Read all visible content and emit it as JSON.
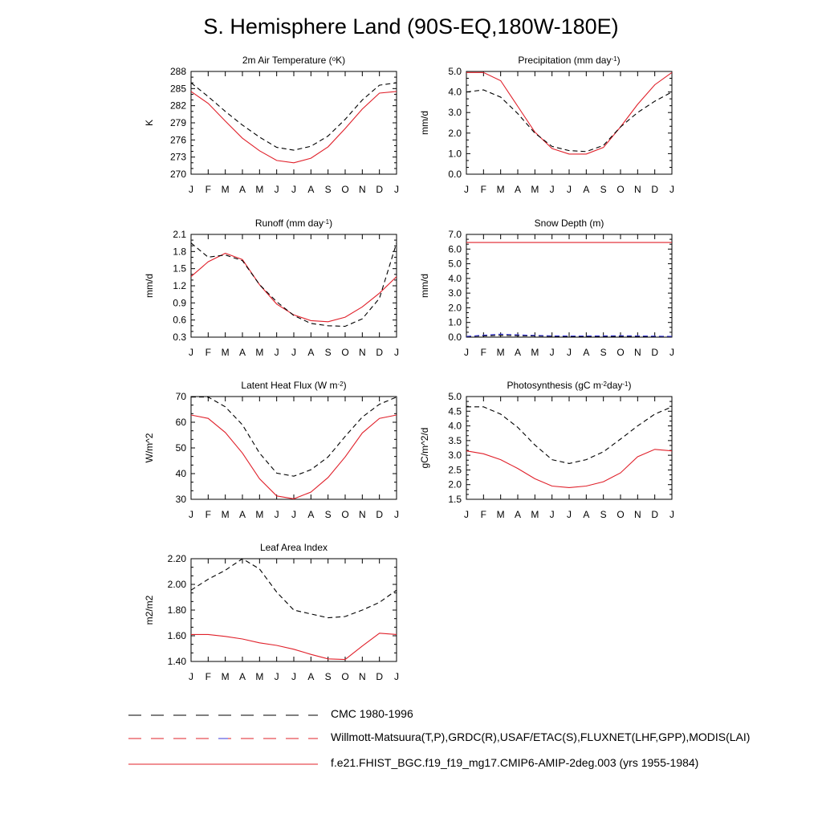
{
  "title": "S. Hemisphere Land (90S-EQ,180W-180E)",
  "colors": {
    "model": "#e0202a",
    "obs": "#000000",
    "obs_alt": "#3a3ad8"
  },
  "chart_data": [
    {
      "id": "tsa",
      "type": "line",
      "title": "2m Air Temperature (°K)",
      "title_parts": [
        {
          "t": "2m Air Temperature ("
        },
        {
          "t": "o",
          "sup": true
        },
        {
          "t": "K)"
        }
      ],
      "ylabel": "K",
      "ylim": [
        270,
        288
      ],
      "yticks": [
        "270",
        "273",
        "276",
        "279",
        "282",
        "285",
        "288"
      ],
      "categories": [
        "J",
        "F",
        "M",
        "A",
        "M",
        "J",
        "J",
        "A",
        "S",
        "O",
        "N",
        "D",
        "J"
      ],
      "series": [
        {
          "name": "model",
          "style": "solid",
          "values": [
            284.5,
            282.4,
            279.3,
            276.3,
            274.1,
            272.4,
            272.0,
            272.8,
            274.8,
            278.0,
            281.4,
            284.2,
            284.5
          ]
        },
        {
          "name": "obs",
          "style": "dashed",
          "values": [
            286.0,
            283.6,
            281.0,
            278.6,
            276.5,
            274.7,
            274.2,
            274.9,
            276.7,
            279.6,
            283.0,
            285.6,
            286.0
          ]
        }
      ]
    },
    {
      "id": "prect",
      "type": "line",
      "title": "Precipitation (mm day-1)",
      "title_parts": [
        {
          "t": "Precipitation (mm day"
        },
        {
          "t": "-1",
          "sup": true
        },
        {
          "t": ")"
        }
      ],
      "ylabel": "mm/d",
      "ylim": [
        0.0,
        5.0
      ],
      "yticks": [
        "0.0",
        "1.0",
        "2.0",
        "3.0",
        "4.0",
        "5.0"
      ],
      "categories": [
        "J",
        "F",
        "M",
        "A",
        "M",
        "J",
        "J",
        "A",
        "S",
        "O",
        "N",
        "D",
        "J"
      ],
      "series": [
        {
          "name": "model",
          "style": "solid",
          "values": [
            4.95,
            4.95,
            4.55,
            3.3,
            2.05,
            1.25,
            0.98,
            0.98,
            1.3,
            2.3,
            3.4,
            4.35,
            4.95
          ]
        },
        {
          "name": "obs",
          "style": "dashed",
          "values": [
            4.0,
            4.1,
            3.75,
            2.95,
            2.0,
            1.35,
            1.15,
            1.1,
            1.4,
            2.3,
            3.0,
            3.55,
            4.0
          ]
        }
      ]
    },
    {
      "id": "runoff",
      "type": "line",
      "title": "Runoff (mm day-1)",
      "title_parts": [
        {
          "t": "Runoff (mm day"
        },
        {
          "t": "-1",
          "sup": true
        },
        {
          "t": ")"
        }
      ],
      "ylabel": "mm/d",
      "ylim": [
        0.3,
        2.1
      ],
      "yticks": [
        "0.3",
        "0.6",
        "0.9",
        "1.2",
        "1.5",
        "1.8",
        "2.1"
      ],
      "categories": [
        "J",
        "F",
        "M",
        "A",
        "M",
        "J",
        "J",
        "A",
        "S",
        "O",
        "N",
        "D",
        "J"
      ],
      "series": [
        {
          "name": "model",
          "style": "solid",
          "values": [
            1.36,
            1.62,
            1.77,
            1.66,
            1.22,
            0.88,
            0.69,
            0.59,
            0.57,
            0.65,
            0.83,
            1.07,
            1.36
          ]
        },
        {
          "name": "obs",
          "style": "dashed",
          "values": [
            1.95,
            1.7,
            1.74,
            1.64,
            1.22,
            0.92,
            0.68,
            0.54,
            0.5,
            0.49,
            0.62,
            0.98,
            1.95
          ]
        }
      ]
    },
    {
      "id": "snowdp",
      "type": "line",
      "title": "Snow Depth (m)",
      "title_parts": [
        {
          "t": "Snow Depth (m)"
        }
      ],
      "ylabel": "mm/d",
      "ylim": [
        0.0,
        7.0
      ],
      "yticks": [
        "0.0",
        "1.0",
        "2.0",
        "3.0",
        "4.0",
        "5.0",
        "6.0",
        "7.0"
      ],
      "categories": [
        "J",
        "F",
        "M",
        "A",
        "M",
        "J",
        "J",
        "A",
        "S",
        "O",
        "N",
        "D",
        "J"
      ],
      "series": [
        {
          "name": "model",
          "style": "solid",
          "values": [
            6.45,
            6.45,
            6.45,
            6.45,
            6.45,
            6.45,
            6.45,
            6.45,
            6.45,
            6.45,
            6.45,
            6.45,
            6.45
          ]
        },
        {
          "name": "obs",
          "style": "dashed",
          "values": [
            0.05,
            0.09,
            0.12,
            0.1,
            0.08,
            0.06,
            0.05,
            0.05,
            0.06,
            0.06,
            0.06,
            0.05,
            0.05
          ]
        },
        {
          "name": "obs-alt",
          "style": "dashed-blue",
          "values": [
            0.05,
            0.13,
            0.2,
            0.16,
            0.12,
            0.09,
            0.08,
            0.08,
            0.09,
            0.1,
            0.09,
            0.07,
            0.05
          ]
        }
      ]
    },
    {
      "id": "lhf",
      "type": "line",
      "title": "Latent Heat Flux (W m-2)",
      "title_parts": [
        {
          "t": "Latent Heat Flux (W m"
        },
        {
          "t": "-2",
          "sup": true
        },
        {
          "t": ")"
        }
      ],
      "ylabel": "W/m^2",
      "ylim": [
        30,
        70
      ],
      "yticks": [
        "30",
        "40",
        "50",
        "60",
        "70"
      ],
      "categories": [
        "J",
        "F",
        "M",
        "A",
        "M",
        "J",
        "J",
        "A",
        "S",
        "O",
        "N",
        "D",
        "J"
      ],
      "series": [
        {
          "name": "model",
          "style": "solid",
          "values": [
            62.8,
            61.5,
            56.0,
            48.0,
            38.0,
            31.3,
            30.2,
            32.8,
            38.5,
            46.5,
            55.8,
            61.5,
            62.8
          ]
        },
        {
          "name": "obs",
          "style": "dashed",
          "values": [
            69.8,
            69.8,
            66.0,
            59.0,
            48.0,
            40.2,
            39.0,
            41.5,
            46.5,
            54.5,
            62.0,
            67.0,
            69.8
          ]
        }
      ]
    },
    {
      "id": "gpp",
      "type": "line",
      "title": "Photosynthesis (gC m-2day-1)",
      "title_parts": [
        {
          "t": "Photosynthesis (gC m"
        },
        {
          "t": "-2",
          "sup": true
        },
        {
          "t": "day"
        },
        {
          "t": "-1",
          "sup": true
        },
        {
          "t": ")"
        }
      ],
      "ylabel": "gC/m^2/d",
      "ylim": [
        1.5,
        5.0
      ],
      "yticks": [
        "1.5",
        "2.0",
        "2.5",
        "3.0",
        "3.5",
        "4.0",
        "4.5",
        "5.0"
      ],
      "categories": [
        "J",
        "F",
        "M",
        "A",
        "M",
        "J",
        "J",
        "A",
        "S",
        "O",
        "N",
        "D",
        "J"
      ],
      "series": [
        {
          "name": "model",
          "style": "solid",
          "values": [
            3.15,
            3.05,
            2.85,
            2.55,
            2.2,
            1.95,
            1.9,
            1.95,
            2.1,
            2.4,
            2.95,
            3.2,
            3.15
          ]
        },
        {
          "name": "obs",
          "style": "dashed",
          "values": [
            4.65,
            4.65,
            4.4,
            3.95,
            3.35,
            2.85,
            2.72,
            2.85,
            3.12,
            3.55,
            4.0,
            4.4,
            4.65
          ]
        }
      ]
    },
    {
      "id": "lai",
      "type": "line",
      "title": "Leaf Area Index",
      "title_parts": [
        {
          "t": "Leaf Area Index"
        }
      ],
      "ylabel": "m2/m2",
      "ylim": [
        1.4,
        2.2
      ],
      "yticks": [
        "1.40",
        "1.60",
        "1.80",
        "2.00",
        "2.20"
      ],
      "categories": [
        "J",
        "F",
        "M",
        "A",
        "M",
        "J",
        "J",
        "A",
        "S",
        "O",
        "N",
        "D",
        "J"
      ],
      "series": [
        {
          "name": "model",
          "style": "solid",
          "values": [
            1.61,
            1.61,
            1.595,
            1.575,
            1.545,
            1.525,
            1.495,
            1.455,
            1.42,
            1.415,
            1.52,
            1.62,
            1.61
          ]
        },
        {
          "name": "obs",
          "style": "dashed",
          "values": [
            1.955,
            2.04,
            2.11,
            2.2,
            2.12,
            1.94,
            1.8,
            1.77,
            1.74,
            1.75,
            1.8,
            1.86,
            1.955
          ]
        }
      ]
    }
  ],
  "legend": [
    {
      "label": "CMC 1980-1996",
      "style": "dashed-black"
    },
    {
      "label": "Willmott-Matsuura(T,P),GRDC(R),USAF/ETAC(S),FLUXNET(LHF,GPP),MODIS(LAI)",
      "style": "dashed-red-blue"
    },
    {
      "label": "f.e21.FHIST_BGC.f19_f19_mg17.CMIP6-AMIP-2deg.003 (yrs 1955-1984)",
      "style": "solid-red"
    }
  ]
}
